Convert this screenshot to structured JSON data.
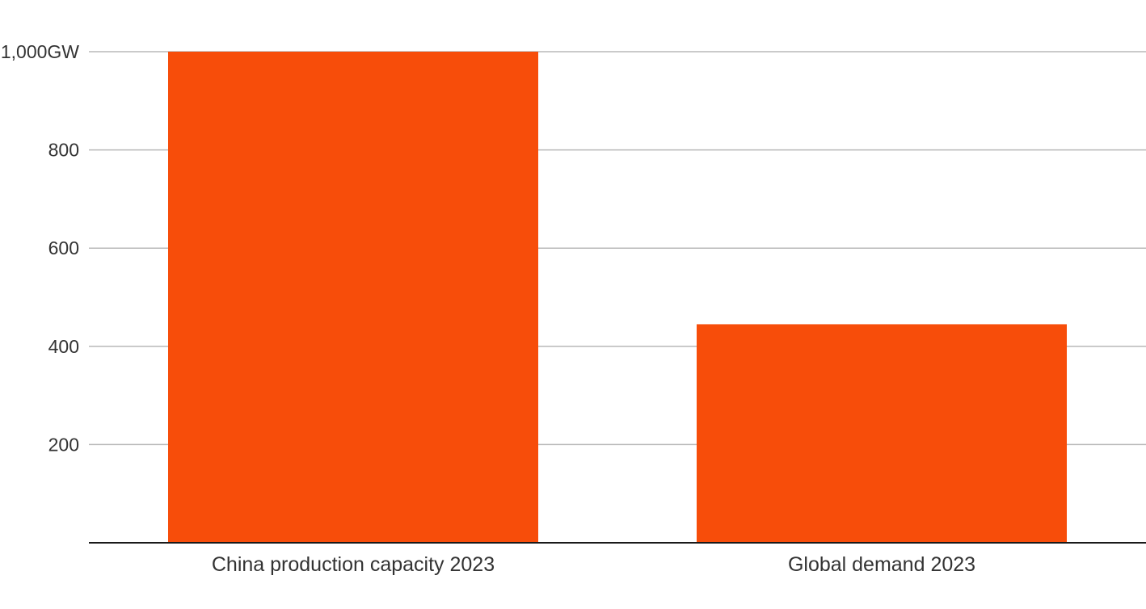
{
  "chart_data": {
    "type": "bar",
    "categories": [
      "China production capacity 2023",
      "Global demand 2023"
    ],
    "values": [
      1000,
      445
    ],
    "ylim": [
      0,
      1000
    ],
    "yticks": [
      200,
      400,
      600,
      800,
      1000
    ],
    "ytick_labels": [
      "200",
      "400",
      "600",
      "800",
      "1,000GW"
    ],
    "grid": true,
    "colors": {
      "bar": "#F74D0A",
      "grid": "#b8b8b8",
      "baseline": "#1a1a1a",
      "text": "#333333"
    }
  }
}
